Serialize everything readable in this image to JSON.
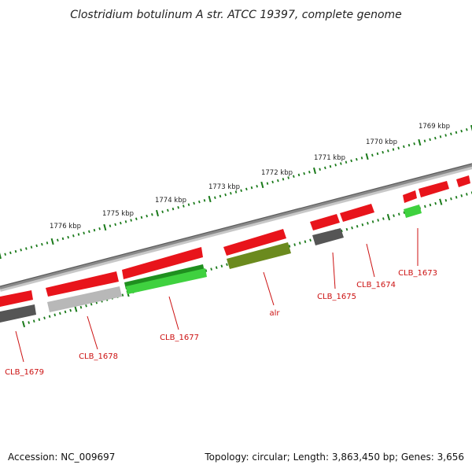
{
  "title": "Clostridium botulinum A str. ATCC 19397, complete genome",
  "accession": "Accession: NC_009697",
  "topology": "Topology: circular; Length: 3,863,450 bp; Genes: 3,656",
  "colors": {
    "forward": "#e8141b",
    "reverse_gray_dark": "#555555",
    "reverse_gray_light": "#b8b8b8",
    "reverse_green_dark": "#1f8f1f",
    "reverse_green_bright": "#3fd13f",
    "reverse_olive": "#6b8a1e",
    "backbone": "#8a8a8a",
    "ticks": "#1a7a1a",
    "label": "#cc1111"
  },
  "kbp_labels": [
    "1769 kbp",
    "1770 kbp",
    "1771 kbp",
    "1772 kbp",
    "1773 kbp",
    "1774 kbp",
    "1775 kbp",
    "1776 kbp"
  ],
  "gene_labels": [
    "CLB_1673",
    "CLB_1674",
    "CLB_1675",
    "alr",
    "CLB_1677",
    "CLB_1678",
    "CLB_1679"
  ]
}
